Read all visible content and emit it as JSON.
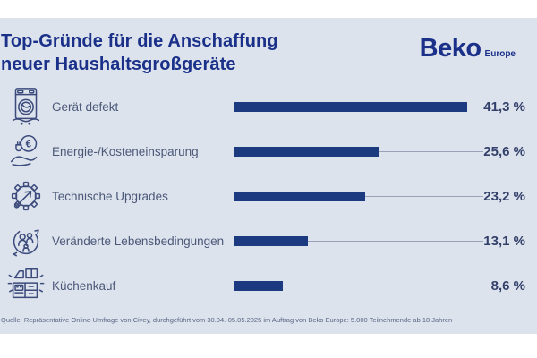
{
  "header": {
    "title_line1": "Top-Gründe für die Anschaffung",
    "title_line2": "neuer Haushaltsgroßgeräte"
  },
  "brand": {
    "name": "Beko",
    "suffix": "Europe"
  },
  "chart_data": {
    "type": "bar",
    "orientation": "horizontal",
    "title": "Top-Gründe für die Anschaffung neuer Haushaltsgroßgeräte",
    "categories": [
      "Gerät defekt",
      "Energie-/Kosteneinsparung",
      "Technische Upgrades",
      "Veränderte Lebensbedingungen",
      "Küchenkauf"
    ],
    "values": [
      41.3,
      25.6,
      23.2,
      13.1,
      8.6
    ],
    "value_labels": [
      "41,3 %",
      "25,6 %",
      "23,2 %",
      "13,1 %",
      "8,6 %"
    ],
    "unit": "%",
    "xlim": [
      0,
      44.2
    ],
    "grid": false,
    "legend": false,
    "bar_color": "#1c3a80",
    "icons": [
      "washing-machine-defect-icon",
      "energy-cost-savings-icon",
      "technical-upgrade-gear-icon",
      "changed-life-circumstances-icon",
      "kitchen-purchase-icon"
    ]
  },
  "footer": {
    "source": "Quelle: Repräsentative Online-Umfrage von Civey, durchgeführt vom 30.04.-05.05.2025 im Auftrag von Beko Europe: 5.000 Teilnehmende ab 18 Jahren"
  },
  "colors": {
    "background": "#dce3ed",
    "band": "#ffffff",
    "navy": "#1b3189",
    "bar": "#1c3a80",
    "label": "#4b5878",
    "track": "#99a2b8"
  }
}
